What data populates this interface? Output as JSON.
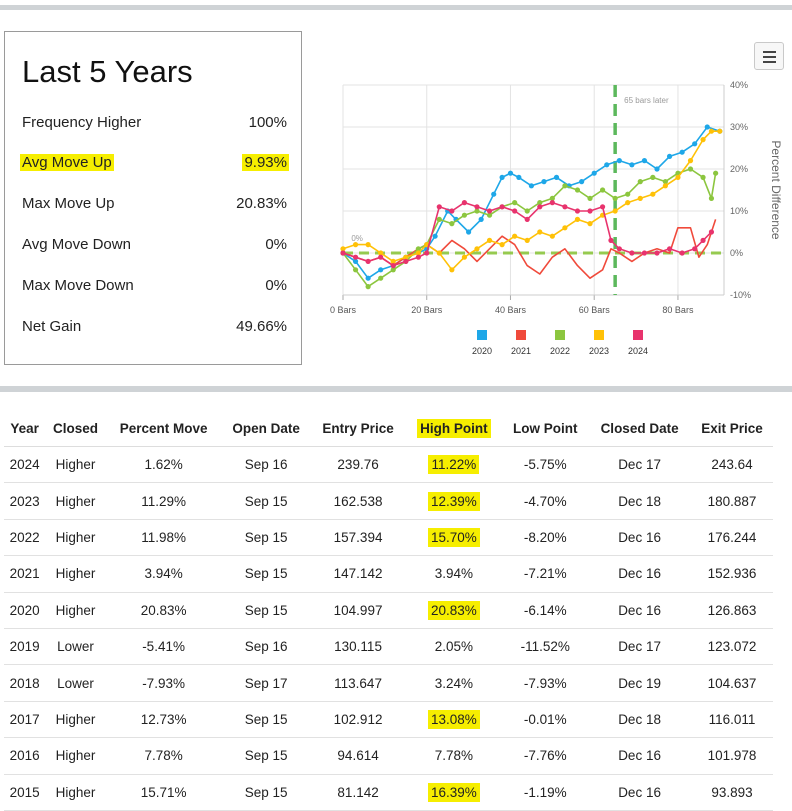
{
  "summary": {
    "title": "Last 5 Years",
    "stats": [
      {
        "label": "Frequency Higher",
        "value": "100%"
      },
      {
        "label": "Avg Move Up",
        "value": "9.93%"
      },
      {
        "label": "Max Move Up",
        "value": "20.83%"
      },
      {
        "label": "Avg Move Down",
        "value": "0%"
      },
      {
        "label": "Max Move Down",
        "value": "0%"
      },
      {
        "label": "Net Gain",
        "value": "49.66%"
      }
    ],
    "highlighted_stat": "Avg Move Up"
  },
  "chart_data": {
    "type": "line",
    "ylabel": "Percent Difference",
    "xlim": [
      0,
      91
    ],
    "ylim": [
      -10,
      40
    ],
    "x_ticks": [
      0,
      20,
      40,
      60,
      80
    ],
    "x_tick_labels": [
      "0 Bars",
      "20 Bars",
      "40 Bars",
      "60 Bars",
      "80 Bars"
    ],
    "y_ticks": [
      -10,
      0,
      10,
      20,
      30,
      40
    ],
    "y_tick_labels": [
      "-10%",
      "0%",
      "10%",
      "20%",
      "30%",
      "40%"
    ],
    "grid": true,
    "legend": "bottom",
    "marker_line": {
      "x": 65,
      "label": "65 bars later"
    },
    "zero_label": "0%",
    "series": [
      {
        "name": "2020",
        "color": "#1ea7e8",
        "points": [
          [
            0,
            0
          ],
          [
            3,
            -2
          ],
          [
            6,
            -6
          ],
          [
            9,
            -4
          ],
          [
            12,
            -3
          ],
          [
            15,
            -1
          ],
          [
            18,
            0
          ],
          [
            20,
            1
          ],
          [
            22,
            4
          ],
          [
            25,
            10
          ],
          [
            27,
            8
          ],
          [
            30,
            5
          ],
          [
            33,
            8
          ],
          [
            36,
            14
          ],
          [
            38,
            18
          ],
          [
            40,
            19
          ],
          [
            42,
            18
          ],
          [
            45,
            16
          ],
          [
            48,
            17
          ],
          [
            51,
            18
          ],
          [
            54,
            16
          ],
          [
            57,
            17
          ],
          [
            60,
            19
          ],
          [
            63,
            21
          ],
          [
            66,
            22
          ],
          [
            69,
            21
          ],
          [
            72,
            22
          ],
          [
            75,
            20
          ],
          [
            78,
            23
          ],
          [
            81,
            24
          ],
          [
            84,
            26
          ],
          [
            87,
            30
          ],
          [
            90,
            29
          ]
        ]
      },
      {
        "name": "2021",
        "color": "#f04a3b",
        "points": [
          [
            0,
            0
          ],
          [
            3,
            -1
          ],
          [
            6,
            -2
          ],
          [
            9,
            -1
          ],
          [
            12,
            -3
          ],
          [
            15,
            -1
          ],
          [
            18,
            1
          ],
          [
            20,
            2
          ],
          [
            23,
            0
          ],
          [
            26,
            3
          ],
          [
            29,
            1
          ],
          [
            32,
            -2
          ],
          [
            35,
            1
          ],
          [
            38,
            4
          ],
          [
            41,
            2
          ],
          [
            44,
            -3
          ],
          [
            47,
            -5
          ],
          [
            50,
            -1
          ],
          [
            53,
            1
          ],
          [
            56,
            -3
          ],
          [
            59,
            -6
          ],
          [
            62,
            -4
          ],
          [
            64,
            1
          ],
          [
            66,
            0
          ],
          [
            69,
            -2
          ],
          [
            72,
            0
          ],
          [
            75,
            1
          ],
          [
            78,
            0
          ],
          [
            80,
            6
          ],
          [
            83,
            6
          ],
          [
            85,
            -1
          ],
          [
            87,
            2
          ],
          [
            89,
            8
          ]
        ]
      },
      {
        "name": "2022",
        "color": "#8cc63f",
        "points": [
          [
            0,
            0
          ],
          [
            3,
            -4
          ],
          [
            6,
            -8
          ],
          [
            9,
            -6
          ],
          [
            12,
            -4
          ],
          [
            15,
            -2
          ],
          [
            18,
            1
          ],
          [
            20,
            2
          ],
          [
            23,
            8
          ],
          [
            26,
            7
          ],
          [
            29,
            9
          ],
          [
            32,
            10
          ],
          [
            35,
            9
          ],
          [
            38,
            11
          ],
          [
            41,
            12
          ],
          [
            44,
            10
          ],
          [
            47,
            12
          ],
          [
            50,
            13
          ],
          [
            53,
            16
          ],
          [
            56,
            15
          ],
          [
            59,
            13
          ],
          [
            62,
            15
          ],
          [
            65,
            13
          ],
          [
            68,
            14
          ],
          [
            71,
            17
          ],
          [
            74,
            18
          ],
          [
            77,
            17
          ],
          [
            80,
            19
          ],
          [
            83,
            20
          ],
          [
            86,
            18
          ],
          [
            88,
            13
          ],
          [
            89,
            19
          ]
        ]
      },
      {
        "name": "2023",
        "color": "#ffc107",
        "points": [
          [
            0,
            1
          ],
          [
            3,
            2
          ],
          [
            6,
            2
          ],
          [
            9,
            0
          ],
          [
            12,
            -2
          ],
          [
            15,
            -1
          ],
          [
            18,
            0
          ],
          [
            20,
            2
          ],
          [
            23,
            0
          ],
          [
            26,
            -4
          ],
          [
            29,
            -1
          ],
          [
            32,
            1
          ],
          [
            35,
            3
          ],
          [
            38,
            2
          ],
          [
            41,
            4
          ],
          [
            44,
            3
          ],
          [
            47,
            5
          ],
          [
            50,
            4
          ],
          [
            53,
            6
          ],
          [
            56,
            8
          ],
          [
            59,
            7
          ],
          [
            62,
            9
          ],
          [
            65,
            10
          ],
          [
            68,
            12
          ],
          [
            71,
            13
          ],
          [
            74,
            14
          ],
          [
            77,
            16
          ],
          [
            80,
            18
          ],
          [
            83,
            22
          ],
          [
            86,
            27
          ],
          [
            88,
            29
          ],
          [
            90,
            29
          ]
        ]
      },
      {
        "name": "2024",
        "color": "#e8336d",
        "points": [
          [
            0,
            0
          ],
          [
            3,
            -1
          ],
          [
            6,
            -2
          ],
          [
            9,
            -1
          ],
          [
            12,
            -3
          ],
          [
            15,
            -2
          ],
          [
            18,
            -1
          ],
          [
            20,
            0
          ],
          [
            23,
            11
          ],
          [
            26,
            10
          ],
          [
            29,
            12
          ],
          [
            32,
            11
          ],
          [
            35,
            10
          ],
          [
            38,
            11
          ],
          [
            41,
            10
          ],
          [
            44,
            8
          ],
          [
            47,
            11
          ],
          [
            50,
            12
          ],
          [
            53,
            11
          ],
          [
            56,
            10
          ],
          [
            59,
            10
          ],
          [
            62,
            11
          ],
          [
            64,
            3
          ],
          [
            66,
            1
          ],
          [
            69,
            0
          ],
          [
            72,
            0
          ],
          [
            75,
            0
          ],
          [
            78,
            1
          ],
          [
            81,
            0
          ],
          [
            84,
            1
          ],
          [
            86,
            3
          ],
          [
            88,
            5
          ]
        ]
      }
    ]
  },
  "table": {
    "headers": [
      "Year",
      "Closed",
      "Percent Move",
      "Open Date",
      "Entry Price",
      "High Point",
      "Low Point",
      "Closed Date",
      "Exit Price"
    ],
    "highlighted_header": "High Point",
    "rows": [
      {
        "year": "2024",
        "closed": "Higher",
        "move": "1.62%",
        "move_dir": "pos",
        "open": "Sep 16",
        "entry": "239.76",
        "high": "11.22%",
        "high_hl": true,
        "low": "-5.75%",
        "close_date": "Dec 17",
        "exit": "243.64"
      },
      {
        "year": "2023",
        "closed": "Higher",
        "move": "11.29%",
        "move_dir": "pos",
        "open": "Sep 15",
        "entry": "162.538",
        "high": "12.39%",
        "high_hl": true,
        "low": "-4.70%",
        "close_date": "Dec 18",
        "exit": "180.887"
      },
      {
        "year": "2022",
        "closed": "Higher",
        "move": "11.98%",
        "move_dir": "pos",
        "open": "Sep 15",
        "entry": "157.394",
        "high": "15.70%",
        "high_hl": true,
        "low": "-8.20%",
        "close_date": "Dec 16",
        "exit": "176.244"
      },
      {
        "year": "2021",
        "closed": "Higher",
        "move": "3.94%",
        "move_dir": "pos",
        "open": "Sep 15",
        "entry": "147.142",
        "high": "3.94%",
        "high_hl": false,
        "low": "-7.21%",
        "close_date": "Dec 16",
        "exit": "152.936"
      },
      {
        "year": "2020",
        "closed": "Higher",
        "move": "20.83%",
        "move_dir": "pos",
        "open": "Sep 15",
        "entry": "104.997",
        "high": "20.83%",
        "high_hl": true,
        "low": "-6.14%",
        "close_date": "Dec 16",
        "exit": "126.863"
      },
      {
        "year": "2019",
        "closed": "Lower",
        "move": "-5.41%",
        "move_dir": "neg",
        "open": "Sep 16",
        "entry": "130.115",
        "high": "2.05%",
        "high_hl": false,
        "low": "-11.52%",
        "close_date": "Dec 17",
        "exit": "123.072"
      },
      {
        "year": "2018",
        "closed": "Lower",
        "move": "-7.93%",
        "move_dir": "neg",
        "open": "Sep 17",
        "entry": "113.647",
        "high": "3.24%",
        "high_hl": false,
        "low": "-7.93%",
        "close_date": "Dec 19",
        "exit": "104.637"
      },
      {
        "year": "2017",
        "closed": "Higher",
        "move": "12.73%",
        "move_dir": "pos",
        "open": "Sep 15",
        "entry": "102.912",
        "high": "13.08%",
        "high_hl": true,
        "low": "-0.01%",
        "close_date": "Dec 18",
        "exit": "116.011"
      },
      {
        "year": "2016",
        "closed": "Higher",
        "move": "7.78%",
        "move_dir": "pos",
        "open": "Sep 15",
        "entry": "94.614",
        "high": "7.78%",
        "high_hl": false,
        "low": "-7.76%",
        "close_date": "Dec 16",
        "exit": "101.978"
      },
      {
        "year": "2015",
        "closed": "Higher",
        "move": "15.71%",
        "move_dir": "pos",
        "open": "Sep 15",
        "entry": "81.142",
        "high": "16.39%",
        "high_hl": true,
        "low": "-1.19%",
        "close_date": "Dec 16",
        "exit": "93.893"
      }
    ]
  },
  "colors": {
    "highlight": "#f6ee00",
    "positive": "#3aa03a",
    "negative": "#d9343f",
    "marker_line": "#5cb85c"
  },
  "icons": {
    "menu": "hamburger-menu-icon"
  }
}
